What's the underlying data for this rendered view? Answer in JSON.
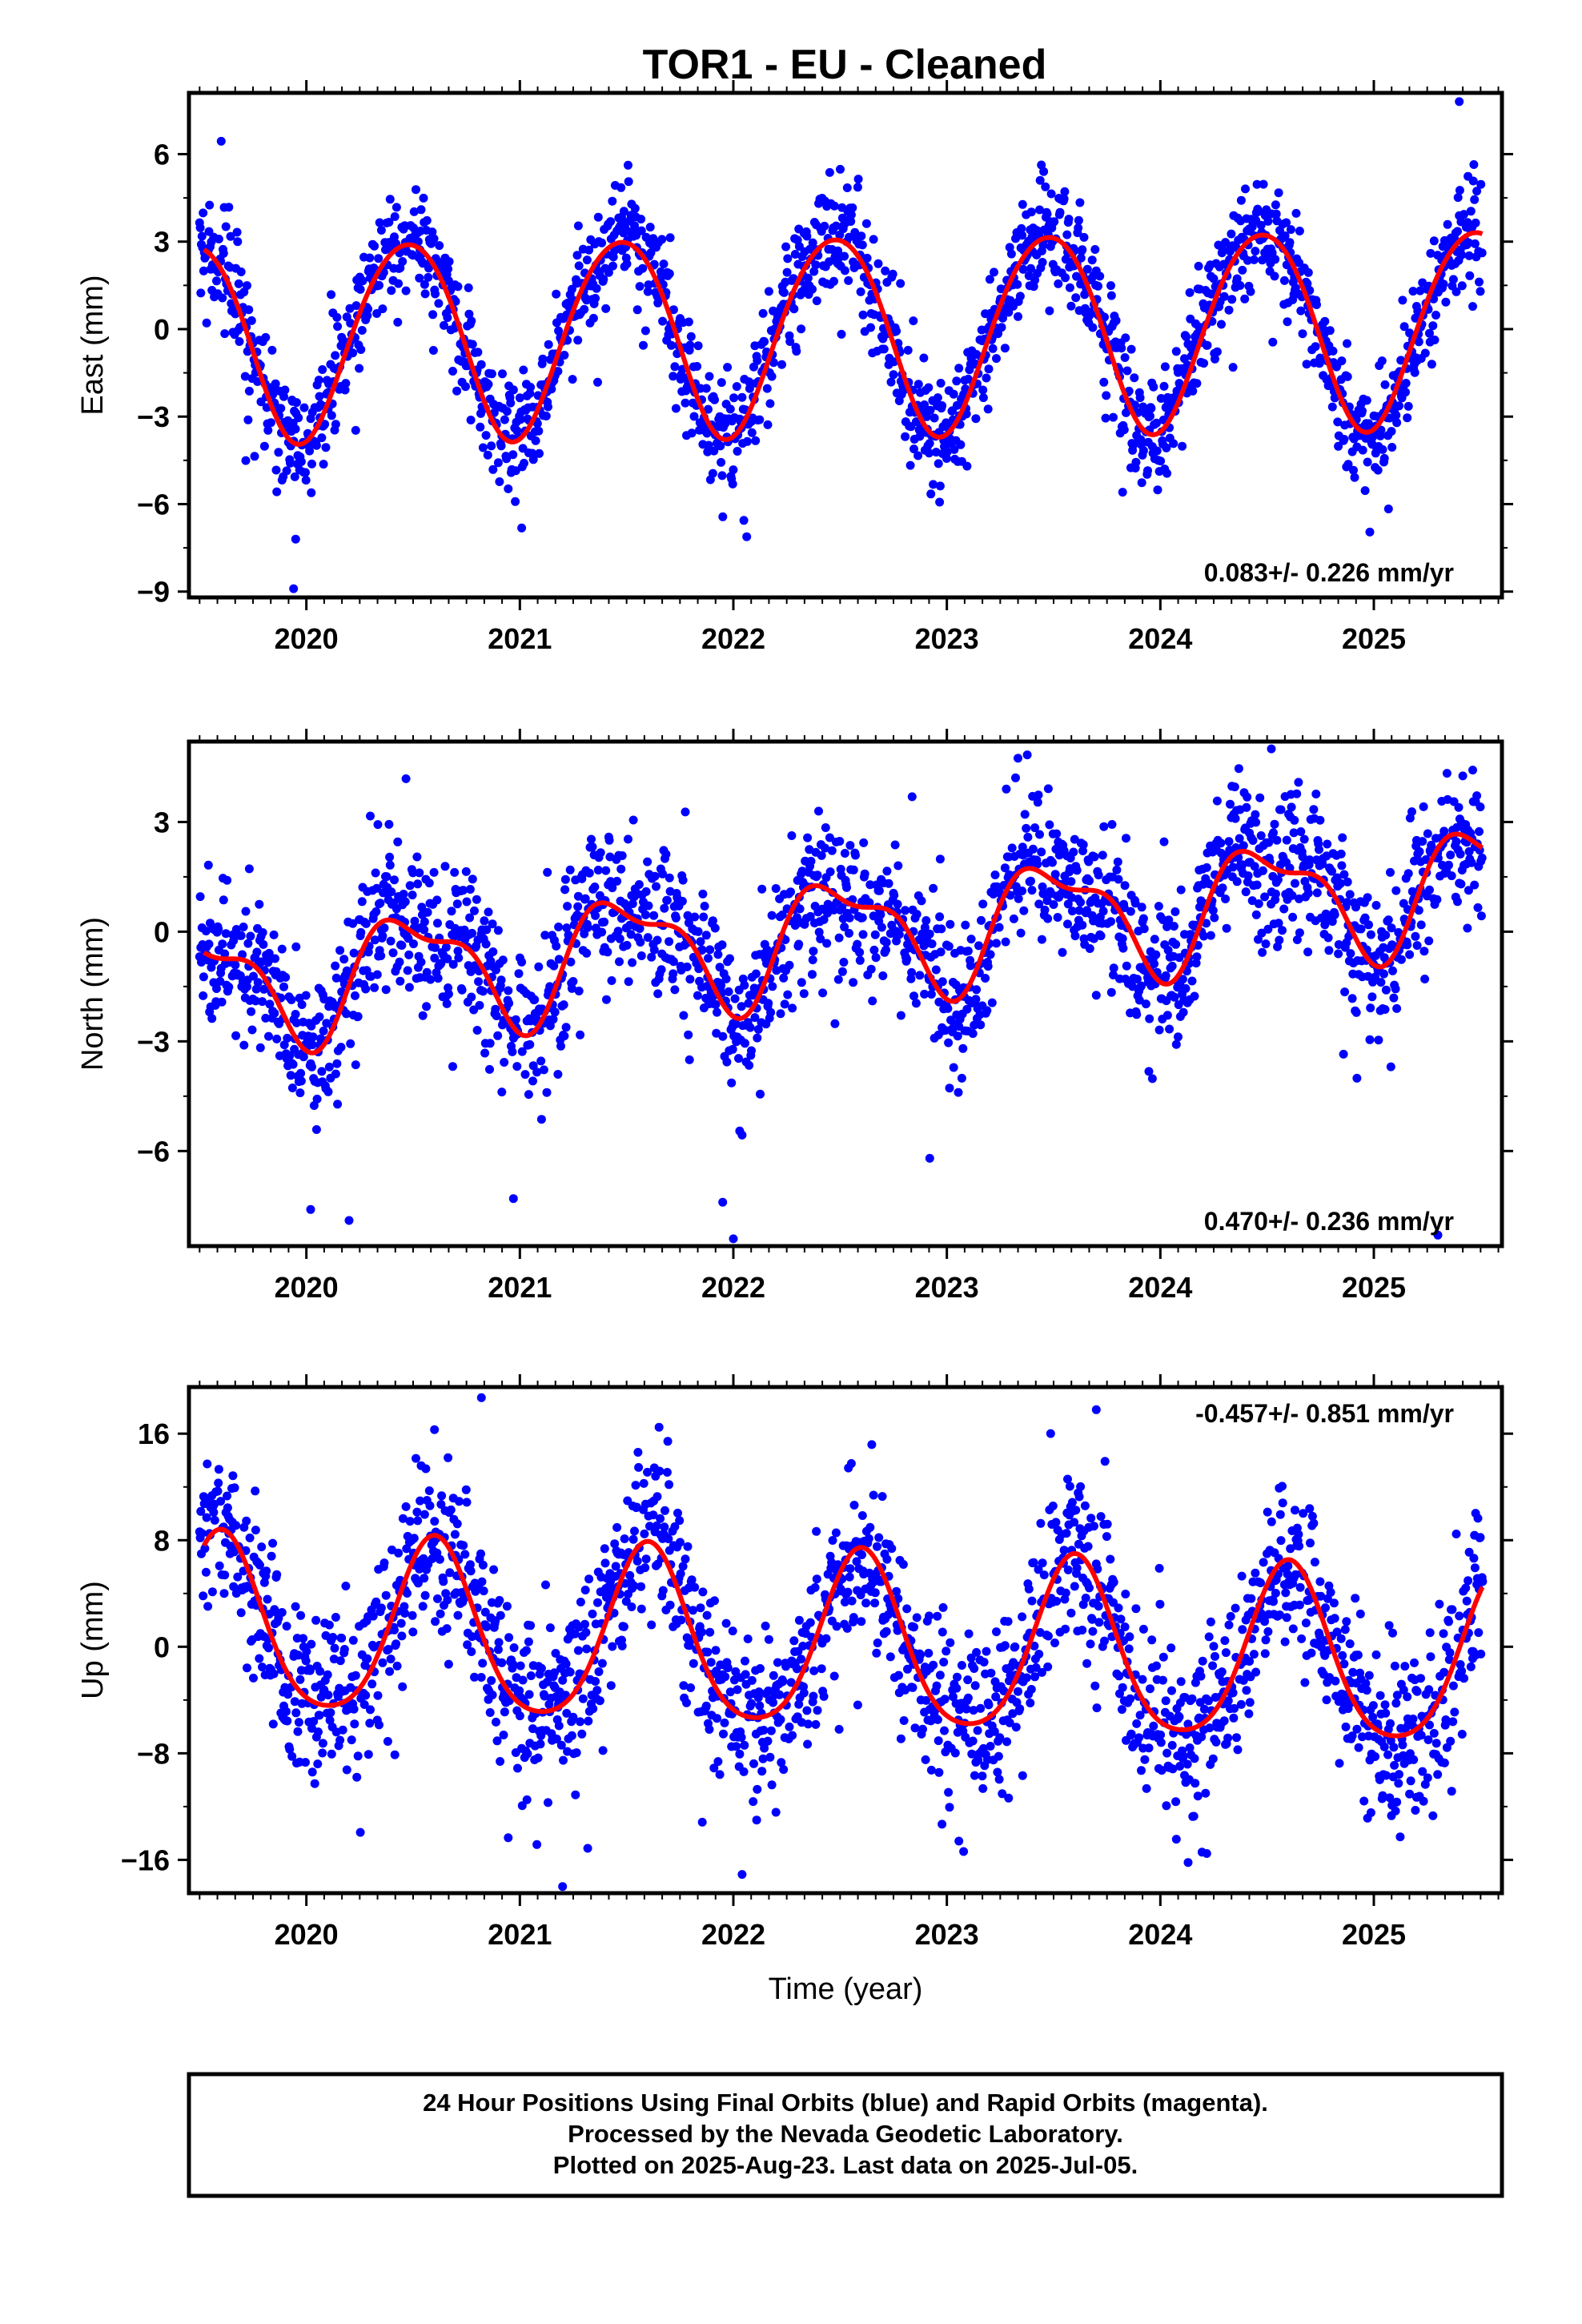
{
  "title": "TOR1  - EU - Cleaned",
  "footer": {
    "lines": [
      "24 Hour Positions Using Final Orbits (blue) and Rapid Orbits (magenta).",
      "Processed by the Nevada Geodetic Laboratory.",
      "Plotted on 2025-Aug-23. Last data on 2025-Jul-05."
    ]
  },
  "colors": {
    "points": "#0000ff",
    "fit": "#ff0000",
    "frame": "#000000"
  },
  "chart_data": [
    {
      "type": "scatter",
      "ylabel": "East (mm)",
      "xlabel": "",
      "xlim": [
        2019.45,
        2025.6
      ],
      "ylim": [
        -9.2,
        8.1
      ],
      "yticks": [
        -9,
        -6,
        -3,
        0,
        3,
        6
      ],
      "xticks": [
        2020,
        2021,
        2022,
        2023,
        2024,
        2025
      ],
      "rate": "0.083+/- 0.226 mm/yr",
      "rate_position": "bottom-right",
      "series": [
        {
          "kind": "points",
          "x_start": 2019.5,
          "x_end": 2025.51,
          "step_days": 1,
          "scatter_sd": 0.95,
          "outliers": [
            [
              2019.94,
              -8.9
            ],
            [
              2019.95,
              -7.2
            ],
            [
              2025.4,
              7.8
            ]
          ]
        },
        {
          "kind": "fit",
          "x_start": 2019.52,
          "x_end": 2025.51,
          "offset": -0.1,
          "trend": 0.083,
          "t0": 2022.5,
          "amp_annual": 3.4,
          "annual_peak_phase": 0.47,
          "amp_semi": 0.25,
          "semi_peak_phase": 0.2
        }
      ]
    },
    {
      "type": "scatter",
      "ylabel": "North (mm)",
      "xlabel": "",
      "xlim": [
        2019.45,
        2025.6
      ],
      "ylim": [
        -8.6,
        5.2
      ],
      "yticks": [
        -6,
        -3,
        0,
        3
      ],
      "xticks": [
        2020,
        2021,
        2022,
        2023,
        2024,
        2025
      ],
      "rate": "0.470+/- 0.236 mm/yr",
      "rate_position": "bottom-right",
      "series": [
        {
          "kind": "points",
          "x_start": 2019.5,
          "x_end": 2025.51,
          "step_days": 1,
          "scatter_sd": 1.0,
          "outliers": [
            [
              2020.02,
              -7.6
            ],
            [
              2020.2,
              -7.9
            ],
            [
              2020.97,
              -7.3
            ],
            [
              2021.95,
              -7.4
            ],
            [
              2022.0,
              -8.4
            ],
            [
              2022.92,
              -6.2
            ],
            [
              2024.52,
              5.0
            ],
            [
              2025.3,
              -8.3
            ]
          ]
        },
        {
          "kind": "fit",
          "x_start": 2019.52,
          "x_end": 2025.51,
          "offset": -0.1,
          "trend": 0.47,
          "t0": 2022.5,
          "amp_annual": 1.5,
          "annual_peak_phase": 0.5,
          "amp_semi": 0.6,
          "semi_peak_phase": 0.3
        }
      ]
    },
    {
      "type": "scatter",
      "ylabel": "Up (mm)",
      "xlabel": "Time (year)",
      "xlim": [
        2019.45,
        2025.6
      ],
      "ylim": [
        -18.5,
        19.5
      ],
      "yticks": [
        -16,
        -8,
        0,
        8,
        16
      ],
      "xticks": [
        2020,
        2021,
        2022,
        2023,
        2024,
        2025
      ],
      "rate": "-0.457+/- 0.851 mm/yr",
      "rate_position": "top-right",
      "series": [
        {
          "kind": "points",
          "x_start": 2019.5,
          "x_end": 2025.51,
          "step_days": 1,
          "scatter_sd": 3.2,
          "outliers": [
            [
              2020.6,
              16.3
            ],
            [
              2020.82,
              18.7
            ],
            [
              2021.2,
              -18.0
            ],
            [
              2023.7,
              17.8
            ],
            [
              2024.13,
              -16.2
            ]
          ]
        },
        {
          "kind": "fit",
          "x_start": 2019.52,
          "x_end": 2025.51,
          "offset": 0.0,
          "trend": -0.457,
          "t0": 2022.5,
          "amp_annual": 6.5,
          "annual_peak_phase": 0.6,
          "amp_semi": 1.0,
          "semi_peak_phase": 0.1
        }
      ]
    }
  ]
}
